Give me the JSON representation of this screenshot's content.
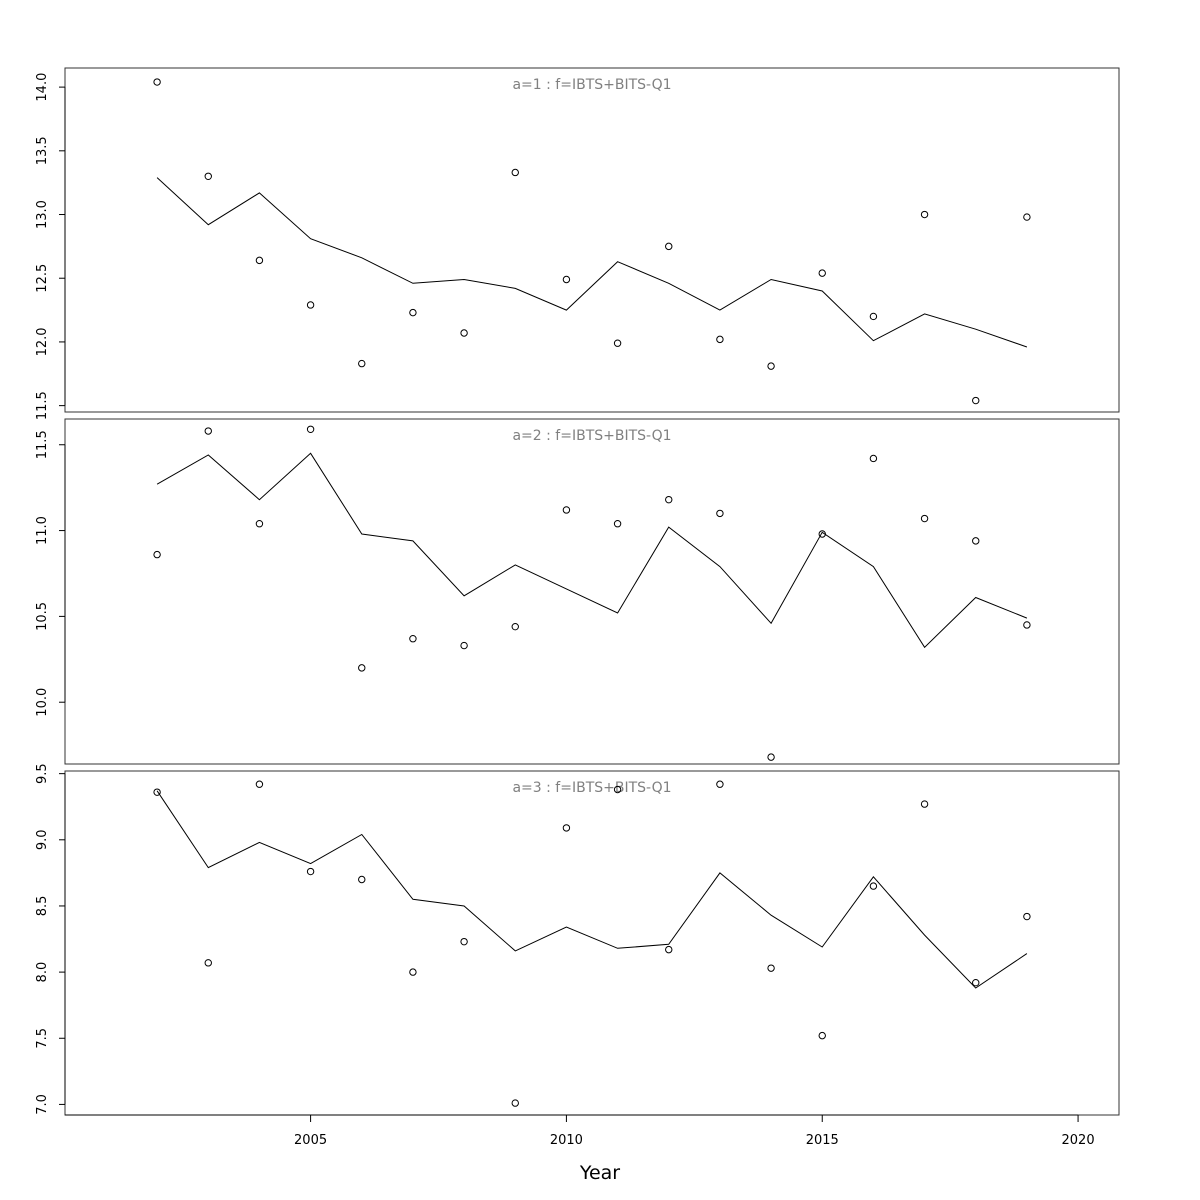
{
  "chart_data": {
    "type": "scatter",
    "xlabel": "Year",
    "xlim": [
      2000.2,
      2020.8
    ],
    "xticks": [
      2005,
      2010,
      2015,
      2020
    ],
    "x": [
      2002,
      2003,
      2004,
      2005,
      2006,
      2007,
      2008,
      2009,
      2010,
      2011,
      2012,
      2013,
      2014,
      2015,
      2016,
      2017,
      2018,
      2019
    ],
    "panels": [
      {
        "title": "a=1  :  f=IBTS+BITS-Q1",
        "ylim": [
          11.45,
          14.15
        ],
        "yticks": [
          "11.5",
          "12.0",
          "12.5",
          "13.0",
          "13.5",
          "14.0"
        ],
        "series": [
          {
            "kind": "points",
            "values": [
              14.04,
              13.3,
              12.64,
              12.29,
              11.83,
              12.23,
              12.07,
              13.33,
              12.49,
              11.99,
              12.75,
              12.02,
              11.81,
              12.54,
              12.2,
              13.0,
              11.54,
              12.98
            ]
          },
          {
            "kind": "line",
            "values": [
              13.29,
              12.92,
              13.17,
              12.81,
              12.66,
              12.46,
              12.49,
              12.42,
              12.25,
              12.63,
              12.46,
              12.25,
              12.49,
              12.4,
              12.01,
              12.22,
              12.1,
              11.96
            ]
          }
        ]
      },
      {
        "title": "a=2  :  f=IBTS+BITS-Q1",
        "ylim": [
          9.64,
          11.65
        ],
        "yticks": [
          "10.0",
          "10.5",
          "11.0",
          "11.5"
        ],
        "series": [
          {
            "kind": "points",
            "values": [
              10.86,
              11.58,
              11.04,
              11.59,
              10.2,
              10.37,
              10.33,
              10.44,
              11.12,
              11.04,
              11.18,
              11.1,
              9.68,
              10.98,
              11.42,
              11.07,
              10.94,
              10.45
            ]
          },
          {
            "kind": "line",
            "values": [
              11.27,
              11.44,
              11.18,
              11.45,
              10.98,
              10.94,
              10.62,
              10.8,
              10.66,
              10.52,
              11.02,
              10.79,
              10.46,
              10.99,
              10.79,
              10.32,
              10.61,
              10.49
            ]
          }
        ]
      },
      {
        "title": "a=3  :  f=IBTS+BITS-Q1",
        "ylim": [
          6.92,
          9.52
        ],
        "yticks": [
          "7.0",
          "7.5",
          "8.0",
          "8.5",
          "9.0",
          "9.5"
        ],
        "series": [
          {
            "kind": "points",
            "values": [
              9.36,
              8.07,
              9.42,
              8.76,
              8.7,
              8.0,
              8.23,
              7.01,
              9.09,
              9.38,
              8.17,
              9.42,
              8.03,
              7.52,
              8.65,
              9.27,
              7.92,
              8.42
            ]
          },
          {
            "kind": "line",
            "values": [
              9.37,
              8.79,
              8.98,
              8.82,
              9.04,
              8.55,
              8.5,
              8.16,
              8.34,
              8.18,
              8.21,
              8.75,
              8.43,
              8.19,
              8.72,
              8.28,
              7.88,
              8.14
            ]
          }
        ]
      }
    ]
  }
}
